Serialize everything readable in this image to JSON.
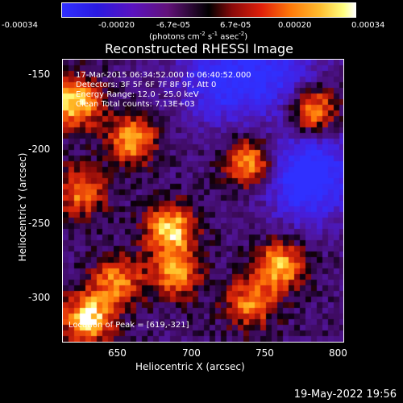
{
  "colorbar": {
    "ticks": [
      "-0.00034",
      "-0.00020",
      "-6.7e-05",
      "6.7e-05",
      "0.00020",
      "0.00034"
    ],
    "units_prefix": "(photons cm",
    "units_sup1": "-2",
    "units_mid1": " s",
    "units_sup2": "-1",
    "units_mid2": " asec",
    "units_sup3": "-2",
    "units_suffix": ")"
  },
  "plot": {
    "title": "Reconstructed RHESSI Image",
    "annotation": [
      "17-Mar-2015 06:34:52.000 to 06:40:52.000",
      "Detectors: 3F 5F 6F 7F 8F 9F, Att 0",
      "Energy Range: 12.0 - 25.0 keV",
      "Clean     Total counts: 7.13E+03"
    ],
    "peak_label": "Location of Peak = [619,-321]",
    "xlabel": "Heliocentric X (arcsec)",
    "ylabel": "Heliocentric Y (arcsec)"
  },
  "chart_data": {
    "type": "heatmap",
    "title": "Reconstructed RHESSI Image",
    "xlabel": "Heliocentric X (arcsec)",
    "ylabel": "Heliocentric Y (arcsec)",
    "xlim": [
      613,
      803
    ],
    "ylim": [
      -331,
      -141
    ],
    "xticks": [
      650,
      700,
      750,
      800
    ],
    "yticks": [
      -150,
      -200,
      -250,
      -300
    ],
    "colorbar_range": [
      -0.00034,
      0.00034
    ],
    "peak_location": [
      619,
      -321
    ],
    "colormap": "blue-purple-black-red-yellow-white",
    "hotspots": [
      {
        "x": 621,
        "y": -170,
        "intensity": 1.0
      },
      {
        "x": 660,
        "y": -195,
        "intensity": 0.8
      },
      {
        "x": 625,
        "y": -230,
        "intensity": 0.7
      },
      {
        "x": 686,
        "y": -255,
        "intensity": 0.95
      },
      {
        "x": 690,
        "y": -285,
        "intensity": 0.75
      },
      {
        "x": 740,
        "y": -210,
        "intensity": 0.9
      },
      {
        "x": 782,
        "y": -175,
        "intensity": 0.95
      },
      {
        "x": 760,
        "y": -280,
        "intensity": 0.85
      },
      {
        "x": 630,
        "y": -315,
        "intensity": 1.0
      },
      {
        "x": 650,
        "y": -290,
        "intensity": 0.7
      },
      {
        "x": 740,
        "y": -305,
        "intensity": 0.7
      }
    ],
    "coldspots": [
      {
        "x": 780,
        "y": -220,
        "intensity": -1.0
      },
      {
        "x": 720,
        "y": -155,
        "intensity": -0.7
      },
      {
        "x": 760,
        "y": -150,
        "intensity": -0.6
      }
    ]
  },
  "footer": {
    "timestamp": "19-May-2022 19:56"
  }
}
